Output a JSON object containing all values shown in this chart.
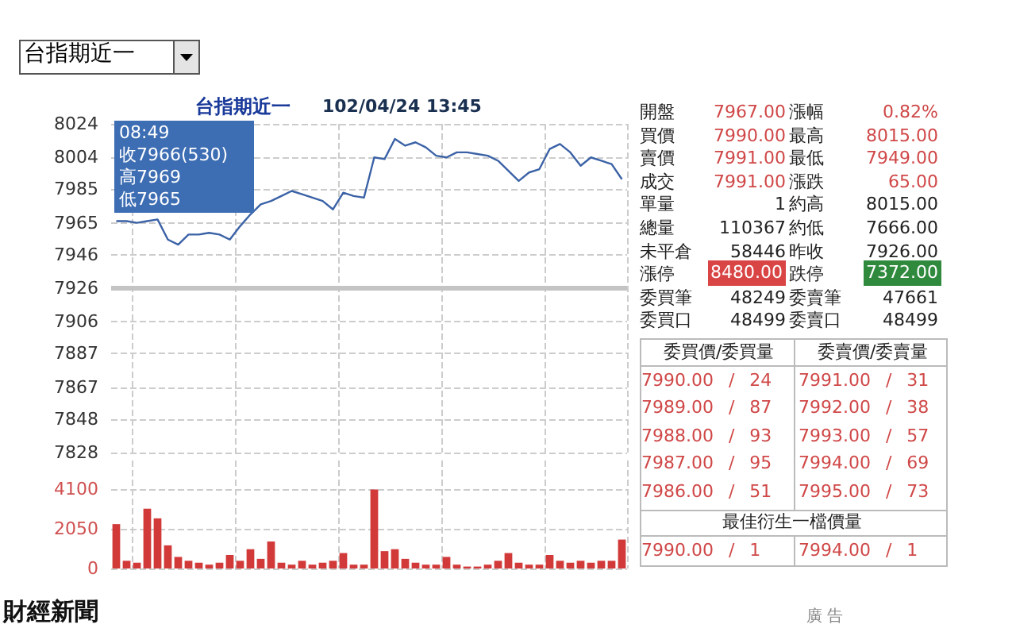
{
  "chart_data": [
    {
      "type": "line",
      "title": "台指期近一",
      "subtitle": "102/04/24 13:45",
      "categories": [
        null,
        null,
        null,
        null,
        null,
        null,
        null,
        null,
        null,
        null,
        null,
        null,
        null,
        null,
        null,
        null,
        null,
        null,
        null,
        null,
        null,
        null,
        null,
        null,
        null,
        null,
        null,
        null,
        null,
        null,
        null,
        null,
        null,
        null,
        null,
        null,
        null,
        null,
        null,
        null,
        null,
        null,
        null,
        null,
        null,
        null,
        null,
        null,
        null,
        null
      ],
      "series": [
        {
          "color": "#3b62a6",
          "values": [
            7966,
            7966,
            7965,
            7966,
            7967,
            7955,
            7952,
            7958,
            7958,
            7959,
            7958,
            7955,
            7963,
            7970,
            7976,
            7978,
            7981,
            7984,
            7982,
            7980,
            7978,
            7973,
            7983,
            7981,
            7980,
            8004,
            8003,
            8015,
            8011,
            8013,
            8010,
            8005,
            8004,
            8007,
            8007,
            8006,
            8005,
            8002,
            7996,
            7990,
            7995,
            7997,
            8009,
            8012,
            8007,
            7999,
            8004,
            8002,
            8000,
            7991
          ]
        }
      ],
      "ylim": [
        7828,
        8024
      ],
      "yticks": [
        7828,
        7848,
        7867,
        7887,
        7906,
        7926,
        7946,
        7965,
        7985,
        8004,
        8024
      ],
      "ref_lines": [
        {
          "axis": "y",
          "value": 7926,
          "color": "#c4c4c4"
        }
      ],
      "annotations": [
        "08:49",
        "收7966(530)",
        "高7969",
        "低7965"
      ],
      "grid": true,
      "tick_labels": "y"
    },
    {
      "type": "bar",
      "categories": [
        null,
        null,
        null,
        null,
        null,
        null,
        null,
        null,
        null,
        null,
        null,
        null,
        null,
        null,
        null,
        null,
        null,
        null,
        null,
        null,
        null,
        null,
        null,
        null,
        null,
        null,
        null,
        null,
        null,
        null,
        null,
        null,
        null,
        null,
        null,
        null,
        null,
        null,
        null,
        null,
        null,
        null,
        null,
        null,
        null,
        null,
        null,
        null,
        null,
        null
      ],
      "series": [
        {
          "color": "#d23a3a",
          "values": [
            2300,
            400,
            300,
            3100,
            2600,
            1200,
            600,
            400,
            300,
            200,
            300,
            700,
            400,
            1000,
            500,
            1400,
            300,
            200,
            400,
            200,
            300,
            400,
            800,
            200,
            200,
            4100,
            900,
            1000,
            500,
            300,
            200,
            200,
            600,
            200,
            100,
            100,
            200,
            400,
            800,
            300,
            200,
            200,
            700,
            400,
            300,
            400,
            300,
            400,
            400,
            1500
          ]
        }
      ],
      "ylim": [
        0,
        5600
      ],
      "yticks": [
        0,
        2050,
        4100
      ],
      "grid": true,
      "tick_labels": "y"
    },
    {
      "type": "other",
      "annotations": [
        "台指期近一",
        "開盤",
        "7967.00",
        "漲幅",
        "0.82%",
        "買價",
        "7990.00",
        "最高",
        "8015.00",
        "賣價",
        "7991.00",
        "最低",
        "7949.00",
        "成交",
        "7991.00",
        "漲跌",
        "65.00",
        "單量",
        "1",
        "約高",
        "8015.00",
        "總量",
        "110367",
        "約低",
        "7666.00",
        "未平倉",
        "58446",
        "昨收",
        "7926.00",
        "漲停",
        "8480.00",
        "跌停",
        "7372.00",
        "委買筆",
        "48249",
        "委賣筆",
        "47661",
        "委買口",
        "48499",
        "委賣口",
        "48499",
        "委買價/委買量",
        "委賣價/委賣量",
        "7990.00 / 24",
        "7991.00 / 31",
        "7989.00 / 87",
        "7992.00 / 38",
        "7988.00 / 93",
        "7993.00 / 57",
        "7987.00 / 95",
        "7994.00 / 69",
        "7986.00 / 51",
        "7995.00 / 73",
        "最佳衍生一檔價量",
        "7990.00 / 1",
        "7994.00 / 1",
        "財經新聞",
        "廣 告"
      ]
    }
  ]
}
